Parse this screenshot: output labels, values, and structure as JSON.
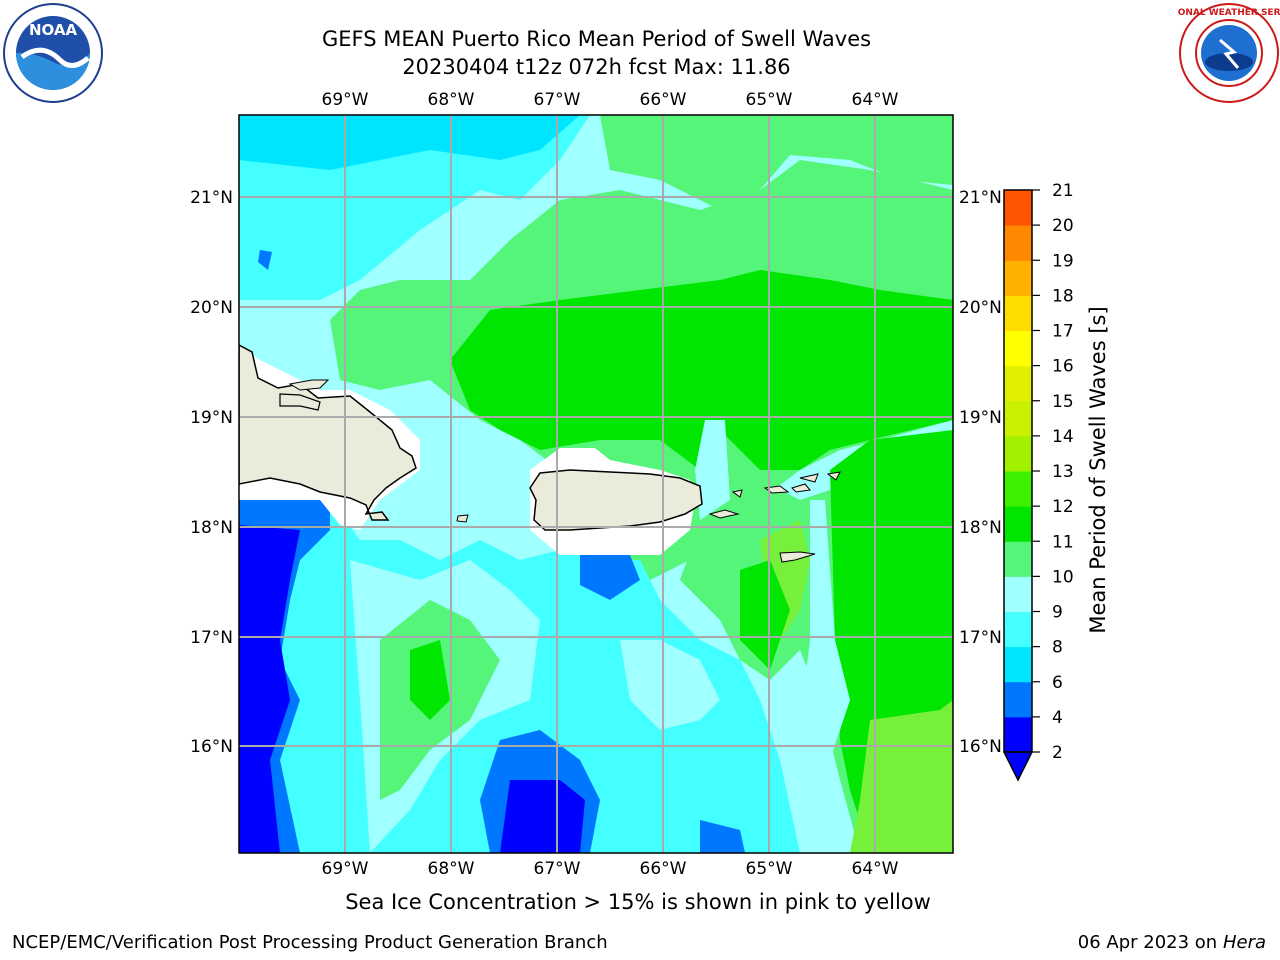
{
  "title": {
    "line1": "GEFS MEAN Puerto Rico Mean Period of Swell Waves",
    "line2": "20230404 t12z 072h fcst   Max: 11.86"
  },
  "map": {
    "lon_labels": [
      "69°W",
      "68°W",
      "67°W",
      "66°W",
      "65°W",
      "64°W"
    ],
    "lat_labels": [
      "21°N",
      "20°N",
      "19°N",
      "18°N",
      "17°N",
      "16°N"
    ]
  },
  "colorbar": {
    "label": "Mean Period of Swell Waves [s]",
    "ticks": [
      "21",
      "20",
      "19",
      "18",
      "17",
      "16",
      "15",
      "14",
      "13",
      "12",
      "11",
      "10",
      "9",
      "8",
      "6",
      "4",
      "2"
    ],
    "colors": [
      "#0000ff",
      "#0077ff",
      "#00e5ff",
      "#44ffff",
      "#a0ffff",
      "#55f57a",
      "#00e600",
      "#3cf000",
      "#a0f000",
      "#c8f000",
      "#e0f000",
      "#ffff00",
      "#ffdd00",
      "#ffb000",
      "#ff8800",
      "#ff5500",
      "#ff2a00",
      "#ff0000"
    ]
  },
  "sea_ice_note": "Sea Ice Concentration > 15% is shown in pink to yellow",
  "footer": {
    "left": "NCEP/EMC/Verification Post Processing Product Generation Branch",
    "right_date": "06 Apr 2023 on",
    "right_host": "Hera"
  },
  "logos": {
    "noaa": "NOAA",
    "nws": "NATIONAL WEATHER SERVICE"
  }
}
